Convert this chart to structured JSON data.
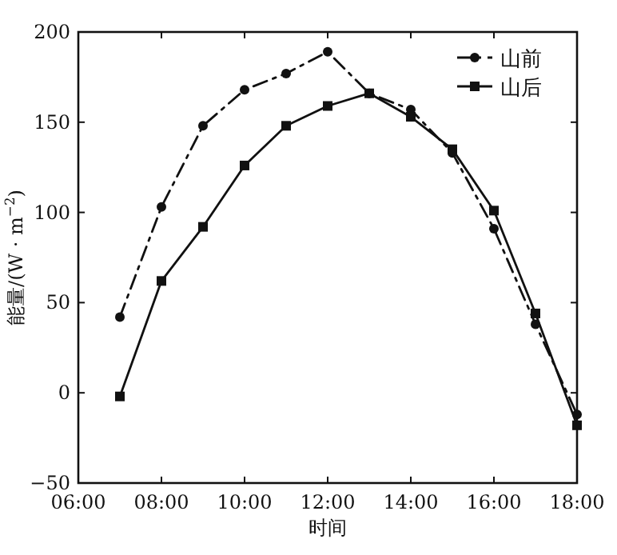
{
  "chart_data": {
    "type": "line",
    "xlabel": "时间",
    "ylabel": "能量/(W · m$^{−2}$)",
    "x": [
      7,
      8,
      9,
      10,
      11,
      12,
      13,
      14,
      15,
      16,
      17,
      18
    ],
    "series": [
      {
        "name": "山前",
        "color": "#111111",
        "line_style": "dashdot",
        "marker": "circle",
        "values": [
          42,
          103,
          148,
          168,
          177,
          189,
          166,
          157,
          133,
          91,
          38,
          -12
        ]
      },
      {
        "name": "山后",
        "color": "#111111",
        "line_style": "solid",
        "marker": "square",
        "values": [
          -2,
          62,
          92,
          126,
          148,
          159,
          166,
          153,
          135,
          101,
          44,
          -18
        ]
      }
    ],
    "xlim": [
      6,
      18
    ],
    "xticks": [
      {
        "value": 6,
        "label": "06:00"
      },
      {
        "value": 8,
        "label": "08:00"
      },
      {
        "value": 10,
        "label": "10:00"
      },
      {
        "value": 12,
        "label": "12:00"
      },
      {
        "value": 14,
        "label": "14:00"
      },
      {
        "value": 16,
        "label": "16:00"
      },
      {
        "value": 18,
        "label": "18:00"
      }
    ],
    "ylim": [
      -50,
      200
    ],
    "yticks": [
      -50,
      0,
      50,
      100,
      150,
      200
    ],
    "grid": false,
    "legend": "top right"
  }
}
